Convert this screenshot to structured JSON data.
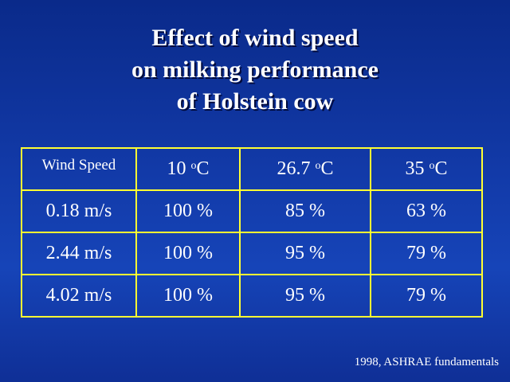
{
  "title": {
    "line1": "Effect of wind speed",
    "line2": "on milking performance",
    "line3": "of Holstein cow"
  },
  "table": {
    "header": {
      "first": "Wind  Speed",
      "temps": [
        {
          "value": "10 ",
          "unit_sup": "o",
          "unit": "C"
        },
        {
          "value": "26.7  ",
          "unit_sup": "o",
          "unit": "C"
        },
        {
          "value": "35  ",
          "unit_sup": "o",
          "unit": "C"
        }
      ]
    },
    "rows": [
      {
        "speed": "0.18 m/s",
        "values": [
          "100 %",
          "85 %",
          "63 %"
        ]
      },
      {
        "speed": "2.44 m/s",
        "values": [
          "100 %",
          "95 %",
          "79 %"
        ]
      },
      {
        "speed": "4.02 m/s",
        "values": [
          "100 %",
          "95 %",
          "79 %"
        ]
      }
    ]
  },
  "source": "1998, ASHRAE fundamentals",
  "colors": {
    "background": "#123aa8",
    "text": "#ffffff",
    "table_border": "#ffff33"
  }
}
